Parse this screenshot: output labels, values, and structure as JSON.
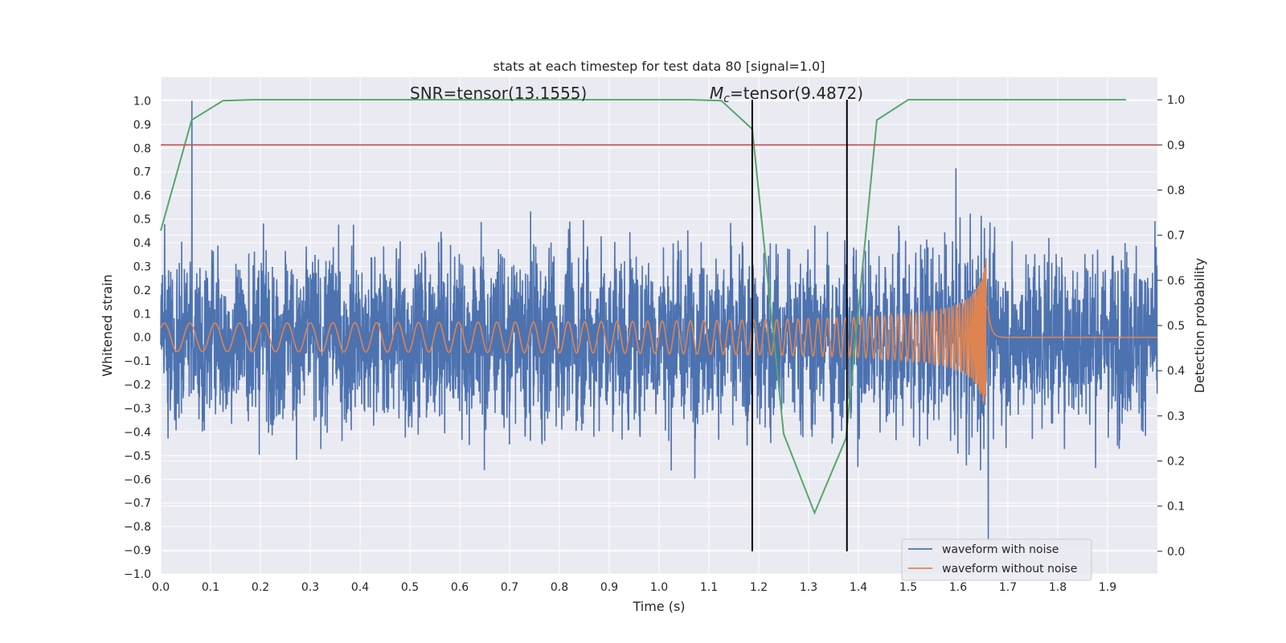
{
  "chart_data": {
    "type": "line",
    "title": "stats at each timestep for test data 80 [signal=1.0]",
    "xlabel": "Time (s)",
    "ylabel": "Whitened strain",
    "y2label": "Detection probability",
    "xlim": [
      0.0,
      2.0
    ],
    "ylim": [
      -1.0,
      1.1
    ],
    "y2lim": [
      -0.05,
      1.05
    ],
    "x_ticks": [
      "0.0",
      "0.1",
      "0.2",
      "0.3",
      "0.4",
      "0.5",
      "0.6",
      "0.7",
      "0.8",
      "0.9",
      "1.0",
      "1.1",
      "1.2",
      "1.3",
      "1.4",
      "1.5",
      "1.6",
      "1.7",
      "1.8",
      "1.9"
    ],
    "y_ticks": [
      "1.0",
      "0.9",
      "0.8",
      "0.7",
      "0.6",
      "0.5",
      "0.4",
      "0.3",
      "0.2",
      "0.1",
      "0.0",
      "−0.1",
      "−0.2",
      "−0.3",
      "−0.4",
      "−0.5",
      "−0.6",
      "−0.7",
      "−0.8",
      "−0.9",
      "−1.0"
    ],
    "y2_ticks": [
      "1.0",
      "0.9",
      "0.8",
      "0.7",
      "0.6",
      "0.5",
      "0.4",
      "0.3",
      "0.2",
      "0.1",
      "0.0"
    ],
    "grid": true,
    "legend_position": "lower-right",
    "annotations": {
      "snr": "SNR=tensor(13.1555)",
      "mc_symbol": "M",
      "mc_sub": "c",
      "mc_value": "=tensor(9.4872)"
    },
    "threshold": {
      "y2": 0.9,
      "color": "#c44e52"
    },
    "vlines": [
      1.187,
      1.377
    ],
    "series": [
      {
        "name": "waveform with noise",
        "color": "#4c72b0",
        "noise_amplitude": 0.25,
        "max_value": 1.0,
        "min_value": -0.86
      },
      {
        "name": "waveform without noise",
        "color": "#dd8452",
        "chirp_start_amplitude": 0.05,
        "chirp_peak_amplitude": 0.45,
        "merger_time": 1.66
      }
    ],
    "detection_probability": {
      "color": "#55a868",
      "x": [
        0.0,
        0.062,
        0.125,
        0.187,
        0.25,
        0.312,
        0.375,
        0.437,
        0.5,
        0.562,
        0.625,
        0.687,
        0.75,
        0.812,
        0.875,
        0.937,
        1.0,
        1.062,
        1.125,
        1.187,
        1.25,
        1.312,
        1.375,
        1.437,
        1.5,
        1.562,
        1.625,
        1.687,
        1.75,
        1.812,
        1.875,
        1.937
      ],
      "y": [
        0.71,
        0.955,
        0.998,
        1.0,
        1.0,
        1.0,
        1.0,
        1.0,
        1.0,
        1.0,
        1.0,
        1.0,
        1.0,
        1.0,
        1.0,
        1.0,
        1.0,
        1.0,
        0.998,
        0.935,
        0.26,
        0.085,
        0.25,
        0.955,
        1.0,
        1.0,
        1.0,
        1.0,
        1.0,
        1.0,
        1.0,
        1.0
      ]
    }
  }
}
